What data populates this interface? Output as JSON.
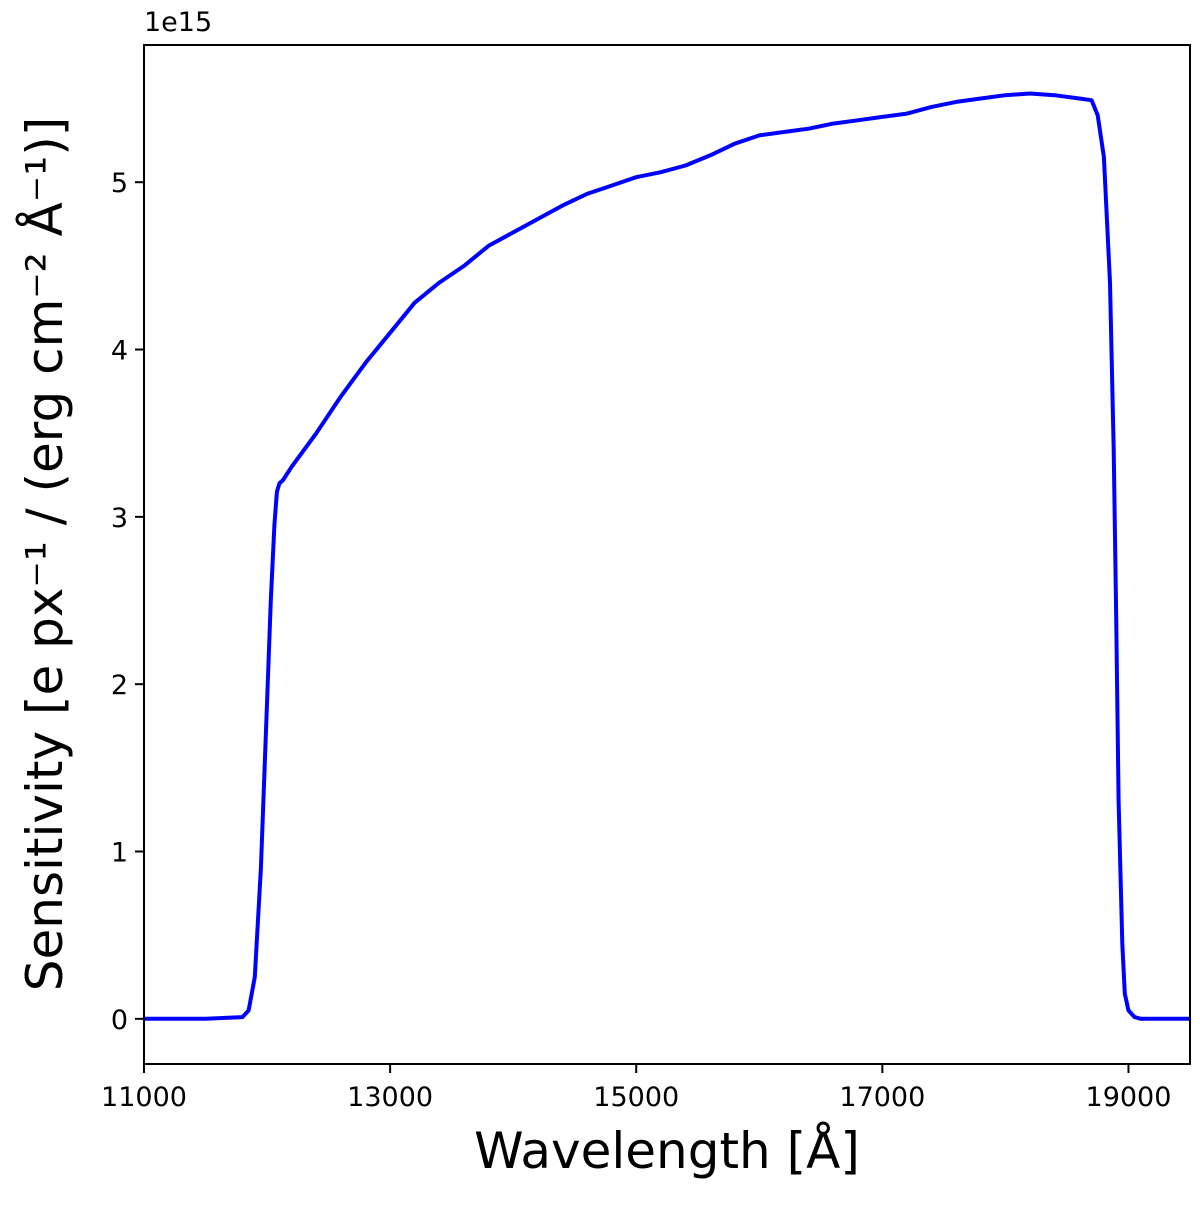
{
  "chart_data": {
    "type": "line",
    "title": "",
    "xlabel": "Wavelength [Å]",
    "ylabel": "Sensitivity [e px⁻¹ / (erg cm⁻² Å⁻¹)]",
    "y_offset_label": "1e15",
    "xlim": [
      11000,
      19500
    ],
    "ylim": [
      -0.27,
      5.82
    ],
    "x_ticks": [
      11000,
      13000,
      15000,
      17000,
      19000
    ],
    "y_ticks": [
      0,
      1,
      2,
      3,
      4,
      5
    ],
    "grid": false,
    "line_color": "#0000ff",
    "series": [
      {
        "x": [
          11000,
          11500,
          11800,
          11850,
          11900,
          11950,
          12000,
          12030,
          12060,
          12080,
          12100,
          12130,
          12200,
          12400,
          12600,
          12800,
          13000,
          13200,
          13400,
          13600,
          13800,
          14000,
          14200,
          14400,
          14600,
          14800,
          15000,
          15200,
          15400,
          15600,
          15800,
          16000,
          16200,
          16400,
          16600,
          16800,
          17000,
          17200,
          17400,
          17600,
          17800,
          18000,
          18200,
          18400,
          18600,
          18700,
          18750,
          18800,
          18850,
          18880,
          18900,
          18920,
          18950,
          18970,
          19000,
          19050,
          19100,
          19200,
          19500
        ],
        "y": [
          0,
          0,
          0.01,
          0.05,
          0.25,
          0.9,
          1.9,
          2.5,
          2.95,
          3.15,
          3.2,
          3.22,
          3.3,
          3.5,
          3.72,
          3.92,
          4.1,
          4.28,
          4.4,
          4.5,
          4.62,
          4.7,
          4.78,
          4.86,
          4.93,
          4.98,
          5.03,
          5.06,
          5.1,
          5.16,
          5.23,
          5.28,
          5.3,
          5.32,
          5.35,
          5.37,
          5.39,
          5.41,
          5.45,
          5.48,
          5.5,
          5.52,
          5.53,
          5.52,
          5.5,
          5.49,
          5.4,
          5.15,
          4.4,
          3.4,
          2.4,
          1.3,
          0.45,
          0.15,
          0.05,
          0.01,
          0,
          0,
          0
        ]
      }
    ]
  }
}
